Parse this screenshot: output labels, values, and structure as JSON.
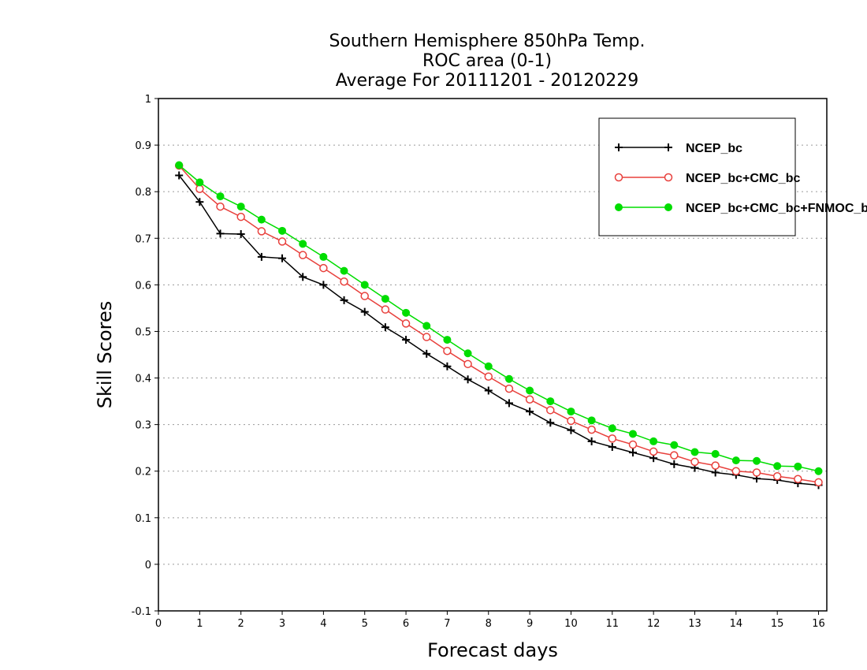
{
  "chart_data": {
    "type": "line",
    "title": [
      "Southern Hemisphere 850hPa Temp.",
      "ROC area (0-1)",
      "Average For 20111201 - 20120229"
    ],
    "xlabel": "Forecast days",
    "ylabel": "Skill Scores",
    "xlim": [
      0,
      16.2
    ],
    "ylim": [
      -0.1,
      1
    ],
    "xticks": [
      "0",
      "1",
      "2",
      "3",
      "4",
      "5",
      "6",
      "7",
      "8",
      "9",
      "10",
      "11",
      "12",
      "13",
      "14",
      "15",
      "16"
    ],
    "yticks": [
      "-0.1",
      "0",
      "0.1",
      "0.2",
      "0.3",
      "0.4",
      "0.5",
      "0.6",
      "0.7",
      "0.8",
      "0.9",
      "1"
    ],
    "grid": "horizontal-dotted",
    "legend_position": "top-right",
    "x": [
      0.5,
      1,
      1.5,
      2,
      2.5,
      3,
      3.5,
      4,
      4.5,
      5,
      5.5,
      6,
      6.5,
      7,
      7.5,
      8,
      8.5,
      9,
      9.5,
      10,
      10.5,
      11,
      11.5,
      12,
      12.5,
      13,
      13.5,
      14,
      14.5,
      15,
      15.5,
      16
    ],
    "series": [
      {
        "name": "NCEP_bc",
        "color": "#000000",
        "marker": "plus",
        "values": [
          0.835,
          0.778,
          0.71,
          0.709,
          0.66,
          0.657,
          0.617,
          0.6,
          0.567,
          0.542,
          0.509,
          0.482,
          0.452,
          0.425,
          0.397,
          0.373,
          0.346,
          0.328,
          0.304,
          0.288,
          0.264,
          0.252,
          0.24,
          0.228,
          0.215,
          0.207,
          0.197,
          0.192,
          0.184,
          0.181,
          0.174,
          0.17
        ]
      },
      {
        "name": "NCEP_bc+CMC_bc",
        "color": "#e8403c",
        "marker": "open-circle",
        "values": [
          0.856,
          0.806,
          0.768,
          0.746,
          0.715,
          0.693,
          0.664,
          0.636,
          0.607,
          0.576,
          0.547,
          0.517,
          0.488,
          0.458,
          0.43,
          0.403,
          0.377,
          0.354,
          0.331,
          0.308,
          0.289,
          0.27,
          0.257,
          0.242,
          0.234,
          0.22,
          0.212,
          0.2,
          0.197,
          0.189,
          0.183,
          0.176
        ]
      },
      {
        "name": "NCEP_bc+CMC_bc+FNMOC_bc",
        "color": "#00dd00",
        "marker": "filled-circle",
        "values": [
          0.857,
          0.82,
          0.79,
          0.768,
          0.74,
          0.716,
          0.688,
          0.66,
          0.63,
          0.6,
          0.57,
          0.54,
          0.512,
          0.482,
          0.453,
          0.425,
          0.398,
          0.373,
          0.35,
          0.328,
          0.309,
          0.292,
          0.28,
          0.264,
          0.256,
          0.241,
          0.237,
          0.223,
          0.222,
          0.211,
          0.21,
          0.2
        ]
      }
    ]
  }
}
